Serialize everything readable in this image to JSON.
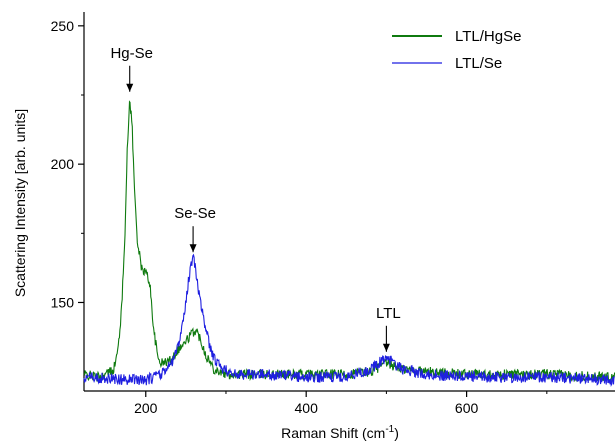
{
  "chart_data": {
    "type": "line",
    "xlabel": "Raman Shift (cm",
    "xlabel_sup": "-1",
    "xlabel_suffix": ")",
    "ylabel": "Scattering Intensity [arb. units]",
    "xlim": [
      123,
      785
    ],
    "ylim": [
      118,
      255
    ],
    "x_ticks": [
      200,
      400,
      600
    ],
    "y_ticks": [
      150,
      200,
      250
    ],
    "grid": false,
    "legend_position": "top-right",
    "series": [
      {
        "name": "LTL/HgSe",
        "color": "#0f7a0f",
        "points": [
          [
            123,
            124
          ],
          [
            140,
            123
          ],
          [
            150,
            124
          ],
          [
            160,
            126
          ],
          [
            165,
            132
          ],
          [
            170,
            148
          ],
          [
            174,
            175
          ],
          [
            177,
            205
          ],
          [
            180,
            224
          ],
          [
            183,
            214
          ],
          [
            186,
            190
          ],
          [
            190,
            171
          ],
          [
            195,
            162
          ],
          [
            200,
            161
          ],
          [
            205,
            157
          ],
          [
            210,
            140
          ],
          [
            215,
            130
          ],
          [
            220,
            128
          ],
          [
            230,
            129
          ],
          [
            240,
            133
          ],
          [
            248,
            135
          ],
          [
            255,
            138
          ],
          [
            262,
            140
          ],
          [
            268,
            137
          ],
          [
            275,
            131
          ],
          [
            285,
            126
          ],
          [
            300,
            124
          ],
          [
            350,
            124
          ],
          [
            400,
            124
          ],
          [
            450,
            124
          ],
          [
            480,
            125
          ],
          [
            500,
            128
          ],
          [
            520,
            126
          ],
          [
            550,
            125
          ],
          [
            600,
            124
          ],
          [
            650,
            124
          ],
          [
            700,
            124
          ],
          [
            785,
            123
          ]
        ],
        "noise": 1.8
      },
      {
        "name": "LTL/Se",
        "color": "#1f1fe0",
        "points": [
          [
            123,
            123
          ],
          [
            180,
            122
          ],
          [
            200,
            122
          ],
          [
            220,
            124
          ],
          [
            235,
            129
          ],
          [
            245,
            140
          ],
          [
            252,
            155
          ],
          [
            256,
            163
          ],
          [
            260,
            166
          ],
          [
            263,
            160
          ],
          [
            268,
            150
          ],
          [
            275,
            140
          ],
          [
            283,
            131
          ],
          [
            295,
            126
          ],
          [
            310,
            124
          ],
          [
            350,
            124
          ],
          [
            400,
            123
          ],
          [
            450,
            123
          ],
          [
            480,
            126
          ],
          [
            495,
            129
          ],
          [
            505,
            129
          ],
          [
            520,
            126
          ],
          [
            550,
            124
          ],
          [
            600,
            123
          ],
          [
            650,
            123
          ],
          [
            700,
            123
          ],
          [
            785,
            122
          ]
        ],
        "noise": 2.0
      }
    ],
    "annotations": [
      {
        "text": "Hg-Se",
        "x": 180,
        "y": 224
      },
      {
        "text": "Se-Se",
        "x": 259,
        "y": 166
      },
      {
        "text": "LTL",
        "x": 500,
        "y": 130
      }
    ]
  }
}
